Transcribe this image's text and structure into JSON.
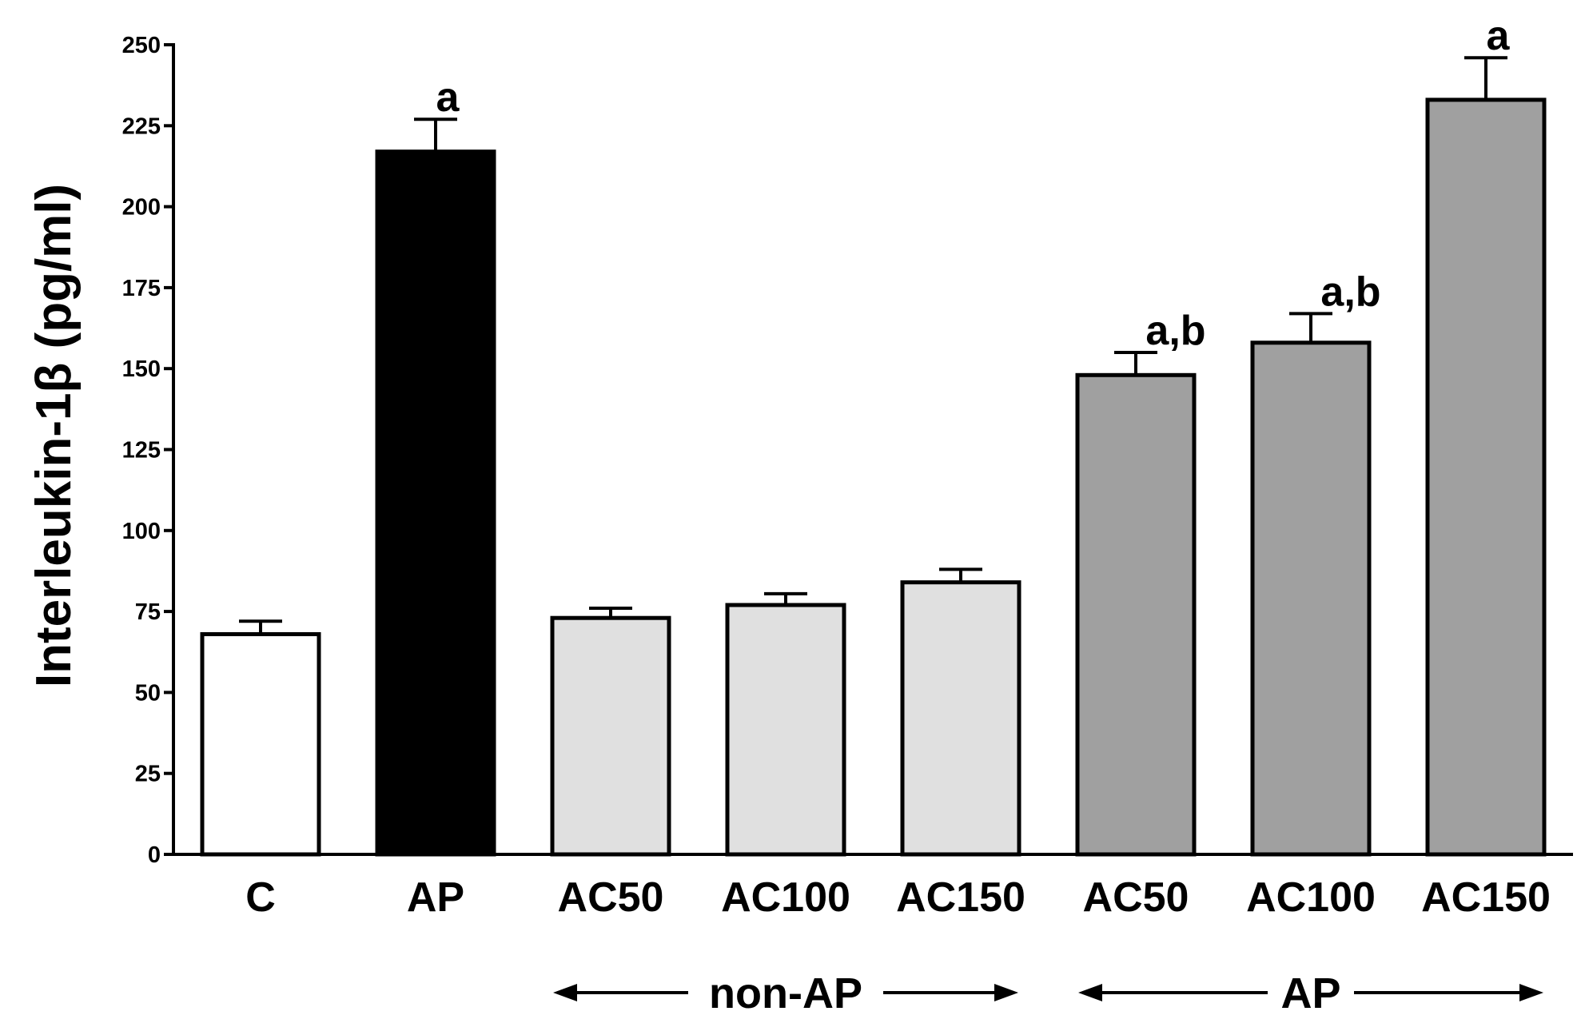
{
  "chart_data": {
    "type": "bar",
    "title": "",
    "xlabel": "",
    "ylabel": "Interleukin-1β (pg/ml)",
    "ylim": [
      0,
      250
    ],
    "yticks": [
      0,
      25,
      50,
      75,
      100,
      125,
      150,
      175,
      200,
      225,
      250
    ],
    "categories": [
      "C",
      "AP",
      "AC50",
      "AC100",
      "AC150",
      "AC50",
      "AC100",
      "AC150"
    ],
    "values": [
      68,
      217,
      73,
      77,
      84,
      148,
      158,
      233
    ],
    "errors": [
      4,
      10,
      3,
      3.5,
      4,
      7,
      9,
      13
    ],
    "fill_colors": [
      "#ffffff",
      "#000000",
      "#e0e0e0",
      "#e0e0e0",
      "#e0e0e0",
      "#a0a0a0",
      "#a0a0a0",
      "#a0a0a0"
    ],
    "annotations": [
      "",
      "a",
      "",
      "",
      "",
      "a,b",
      "a,b",
      "a"
    ],
    "groups": [
      {
        "label": "non-AP",
        "from_index": 2,
        "to_index": 4
      },
      {
        "label": "AP",
        "from_index": 5,
        "to_index": 7
      }
    ]
  }
}
